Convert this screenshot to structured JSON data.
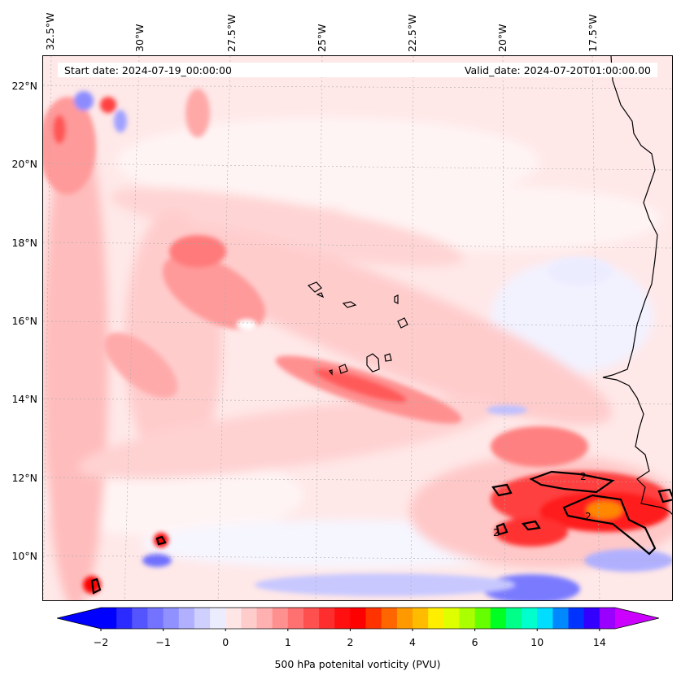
{
  "map": {
    "start_date_text": "Start date: 2024-07-19_00:00:00",
    "valid_date_text": "Valid_date: 2024-07-20T01:00:00.00",
    "lon_labels": [
      "32.5°W",
      "30°W",
      "27.5°W",
      "25°W",
      "22.5°W",
      "20°W",
      "17.5°W"
    ],
    "lat_labels": [
      "22°N",
      "20°N",
      "18°N",
      "16°N",
      "14°N",
      "12°N",
      "10°N"
    ],
    "contour_labels": [
      "2",
      "2",
      "2"
    ],
    "extent": {
      "lon_min": -33.2,
      "lon_max": -15.9,
      "lat_min": 8.9,
      "lat_max": 22.8
    },
    "field": "500 hPa potential vorticity",
    "units": "PVU",
    "contour_level": 2
  },
  "colorbar": {
    "label": "500 hPa potenital vorticity (PVU)",
    "tick_labels": [
      "−2",
      "−1",
      "0",
      "1",
      "2",
      "4",
      "6",
      "10",
      "14"
    ],
    "colors": [
      "#0000ff",
      "#2b2bff",
      "#5555ff",
      "#7373ff",
      "#9090ff",
      "#b0b0ff",
      "#d0d0ff",
      "#ececff",
      "#ffe6e6",
      "#ffcccc",
      "#ffb0b0",
      "#ff9090",
      "#ff7070",
      "#ff5050",
      "#ff2e2e",
      "#ff0f0f",
      "#ff0000",
      "#ff3300",
      "#ff6600",
      "#ff9900",
      "#ffbb00",
      "#ffee00",
      "#ddff00",
      "#aaff00",
      "#66ff00",
      "#00ff22",
      "#00ff88",
      "#00ffcc",
      "#00ddff",
      "#0088ff",
      "#0033ff",
      "#3300ff",
      "#9900ff"
    ],
    "under_color": "#0000ff",
    "over_color": "#cc00ff"
  }
}
